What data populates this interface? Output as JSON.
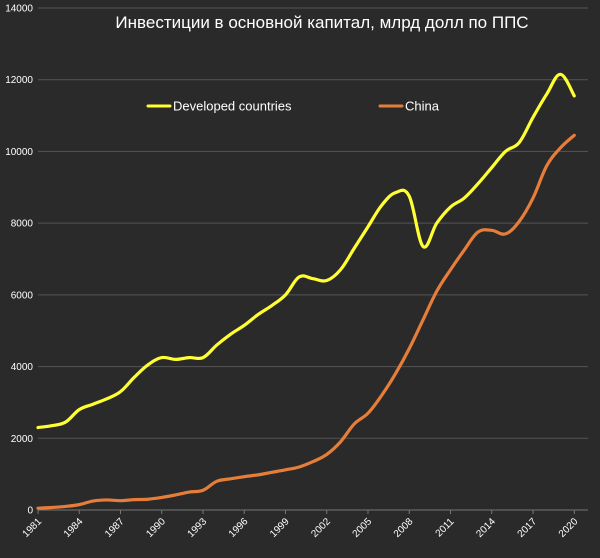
{
  "chart_data": {
    "type": "line",
    "title": "Инвестиции в основной капитал, млрд долл по ППС",
    "xlabel": "",
    "ylabel": "",
    "xlim": [
      1981,
      2021
    ],
    "ylim": [
      0,
      14000
    ],
    "y_ticks": [
      0,
      2000,
      4000,
      6000,
      8000,
      10000,
      12000,
      14000
    ],
    "x_ticks": [
      1981,
      1984,
      1987,
      1990,
      1993,
      1996,
      1999,
      2002,
      2005,
      2008,
      2011,
      2014,
      2017,
      2020
    ],
    "grid": true,
    "legend_position": "top",
    "background_color": "#2a2a2a",
    "grid_color": "#555555",
    "series": [
      {
        "name": "Developed countries",
        "color": "#ffff33",
        "x": [
          1981,
          1982,
          1983,
          1984,
          1985,
          1986,
          1987,
          1988,
          1989,
          1990,
          1991,
          1992,
          1993,
          1994,
          1995,
          1996,
          1997,
          1998,
          1999,
          2000,
          2001,
          2002,
          2003,
          2004,
          2005,
          2006,
          2007,
          2008,
          2009,
          2010,
          2011,
          2012,
          2013,
          2014,
          2015,
          2016,
          2017,
          2018,
          2019,
          2020
        ],
        "y": [
          2300,
          2350,
          2450,
          2800,
          2950,
          3100,
          3300,
          3700,
          4050,
          4250,
          4200,
          4250,
          4250,
          4600,
          4900,
          5150,
          5450,
          5700,
          6000,
          6500,
          6450,
          6400,
          6700,
          7300,
          7900,
          8500,
          8850,
          8750,
          7350,
          8000,
          8450,
          8700,
          9100,
          9550,
          10000,
          10250,
          10950,
          11600,
          12150,
          11550
        ]
      },
      {
        "name": "China",
        "color": "#e67e3a",
        "x": [
          1981,
          1982,
          1983,
          1984,
          1985,
          1986,
          1987,
          1988,
          1989,
          1990,
          1991,
          1992,
          1993,
          1994,
          1995,
          1996,
          1997,
          1998,
          1999,
          2000,
          2001,
          2002,
          2003,
          2004,
          2005,
          2006,
          2007,
          2008,
          2009,
          2010,
          2011,
          2012,
          2013,
          2014,
          2015,
          2016,
          2017,
          2018,
          2019,
          2020
        ],
        "y": [
          50,
          70,
          100,
          150,
          250,
          280,
          260,
          290,
          300,
          350,
          420,
          500,
          550,
          800,
          870,
          930,
          980,
          1050,
          1120,
          1200,
          1350,
          1550,
          1900,
          2400,
          2700,
          3200,
          3800,
          4500,
          5300,
          6100,
          6700,
          7250,
          7750,
          7800,
          7700,
          8050,
          8700,
          9600,
          10100,
          10450
        ]
      }
    ]
  }
}
